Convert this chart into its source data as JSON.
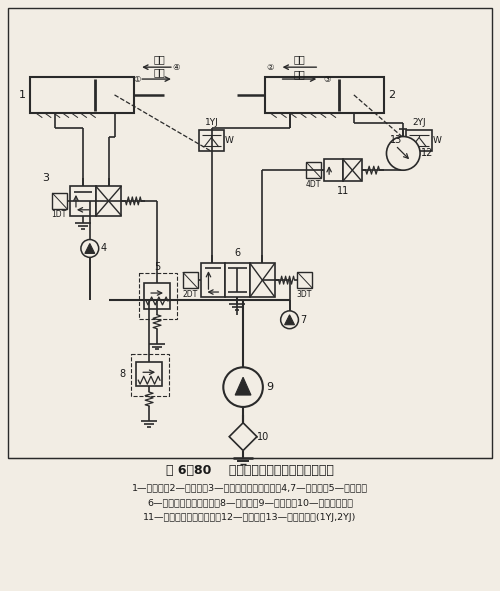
{
  "title": "图 6－80    压力继电器控制的顺序动作回路",
  "caption_lines": [
    "1—夹紧缸；2—进给缸；3—二位四通电磁换向阀；4,7—单向阀；5—减压阀；",
    "6—三位四通电磁换向阀；8—溢流阀；9—液压泵；10—吸油过滤器；",
    "11—二位二通电磁换向阀；12—调速阀；13—压力继电器(1YJ,2YJ)"
  ],
  "bg_color": "#f2ede4",
  "line_color": "#2a2a2a",
  "text_color": "#1a1a1a"
}
